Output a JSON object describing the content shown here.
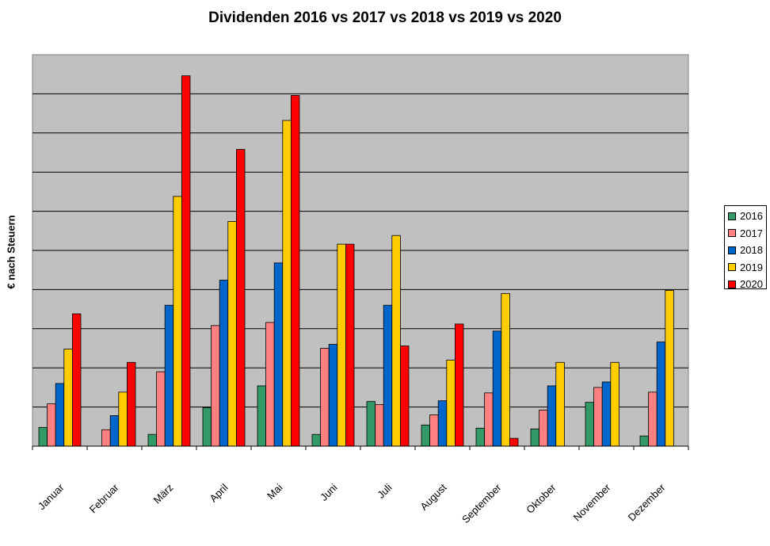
{
  "chart_data": {
    "type": "bar",
    "title": "Dividenden 2016 vs 2017 vs 2018 vs 2019 vs 2020",
    "ylabel": "€ nach Steuern",
    "xlabel": "",
    "categories": [
      "Januar",
      "Februar",
      "März",
      "April",
      "Mai",
      "Juni",
      "Juli",
      "August",
      "September",
      "Oktober",
      "November",
      "Dezember"
    ],
    "ylim": [
      0,
      100
    ],
    "y_tick_labels_shown": false,
    "grid": true,
    "legend_position": "right",
    "plot_background": "#c0c0c0",
    "series": [
      {
        "name": "2016",
        "color": "#339966",
        "values": [
          4.8,
          0,
          3.0,
          9.8,
          15.4,
          3.0,
          11.4,
          5.4,
          4.6,
          4.4,
          11.2,
          2.6
        ]
      },
      {
        "name": "2017",
        "color": "#ff8080",
        "values": [
          10.8,
          4.2,
          19.0,
          30.8,
          31.6,
          25.0,
          10.6,
          8.0,
          13.6,
          9.2,
          15.0,
          13.8
        ]
      },
      {
        "name": "2018",
        "color": "#0066cc",
        "values": [
          16.0,
          7.8,
          36.0,
          42.4,
          46.8,
          26.0,
          36.0,
          11.6,
          29.4,
          15.4,
          16.4,
          26.6
        ]
      },
      {
        "name": "2019",
        "color": "#ffcc00",
        "values": [
          24.8,
          13.8,
          63.8,
          57.4,
          83.2,
          51.6,
          53.8,
          22.0,
          39.0,
          21.4,
          21.4,
          39.8
        ]
      },
      {
        "name": "2020",
        "color": "#ff0000",
        "values": [
          33.8,
          21.4,
          94.6,
          75.8,
          89.6,
          51.6,
          25.6,
          31.2,
          2.0,
          0,
          0,
          0
        ]
      }
    ]
  }
}
